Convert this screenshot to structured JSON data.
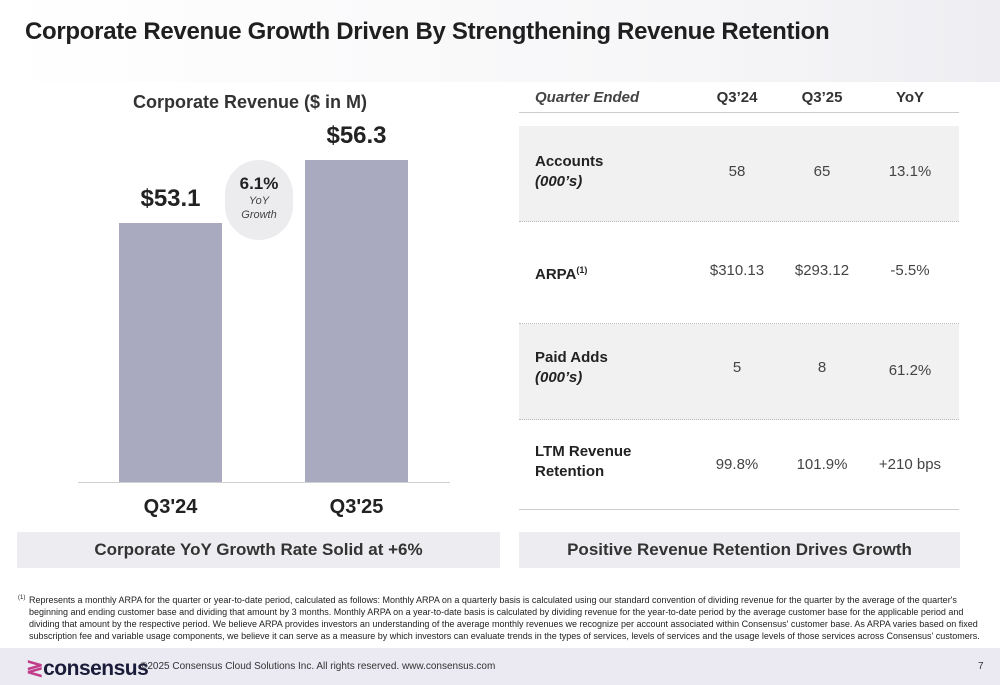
{
  "title": "Corporate Revenue Growth Driven By Strengthening Revenue Retention",
  "chart_data": {
    "type": "bar",
    "title": "Corporate Revenue ($ in M)",
    "categories": [
      "Q3'24",
      "Q3'25"
    ],
    "values": [
      53.1,
      56.3
    ],
    "value_labels": [
      "$53.1",
      "$56.3"
    ],
    "ylim": [
      40,
      57.3
    ],
    "annotation": {
      "value": "6.1%",
      "line1": "YoY",
      "line2": "Growth"
    },
    "color": "#a9a9bf"
  },
  "captions": {
    "left": "Corporate YoY Growth Rate Solid at +6%",
    "right": "Positive Revenue Retention Drives Growth"
  },
  "table": {
    "headers": [
      "Quarter Ended",
      "Q3’24",
      "Q3’25",
      "YoY"
    ],
    "rows": [
      {
        "label": "Accounts",
        "sub": "(000’s)",
        "values": [
          "58",
          "65",
          "13.1%"
        ]
      },
      {
        "label": "ARPA",
        "sup": "(1)",
        "values": [
          "$310.13",
          "$293.12",
          "-5.5%"
        ]
      },
      {
        "label": "Paid Adds",
        "sub": "(000’s)",
        "values": [
          "5",
          "8",
          "61.2%"
        ]
      },
      {
        "label": "LTM Revenue",
        "label2": "Retention",
        "values": [
          "99.8%",
          "101.9%",
          "+210 bps"
        ]
      }
    ]
  },
  "footnote": {
    "marker": "(1)",
    "text": "Represents a monthly ARPA for the quarter or year-to-date period, calculated as follows: Monthly ARPA on a quarterly basis is calculated using our standard convention of dividing revenue for the quarter by the average of the quarter's beginning and ending customer base and dividing that amount by 3 months. Monthly ARPA on a year-to-date basis is calculated by dividing revenue for the year-to-date period by the average customer base for the applicable period and dividing that amount by the respective period. We believe ARPA provides investors an understanding of the average monthly revenues we recognize per account associated within Consensus' customer base. As ARPA varies based on fixed subscription fee and variable usage components, we believe it can serve as a measure by which investors can evaluate trends in the types of services, levels of services and the usage levels of those services across Consensus' customers."
  },
  "footer": {
    "logo": "consensus",
    "copyright": "©2025 Consensus Cloud Solutions Inc. All rights reserved. www.consensus.com",
    "page": "7"
  }
}
